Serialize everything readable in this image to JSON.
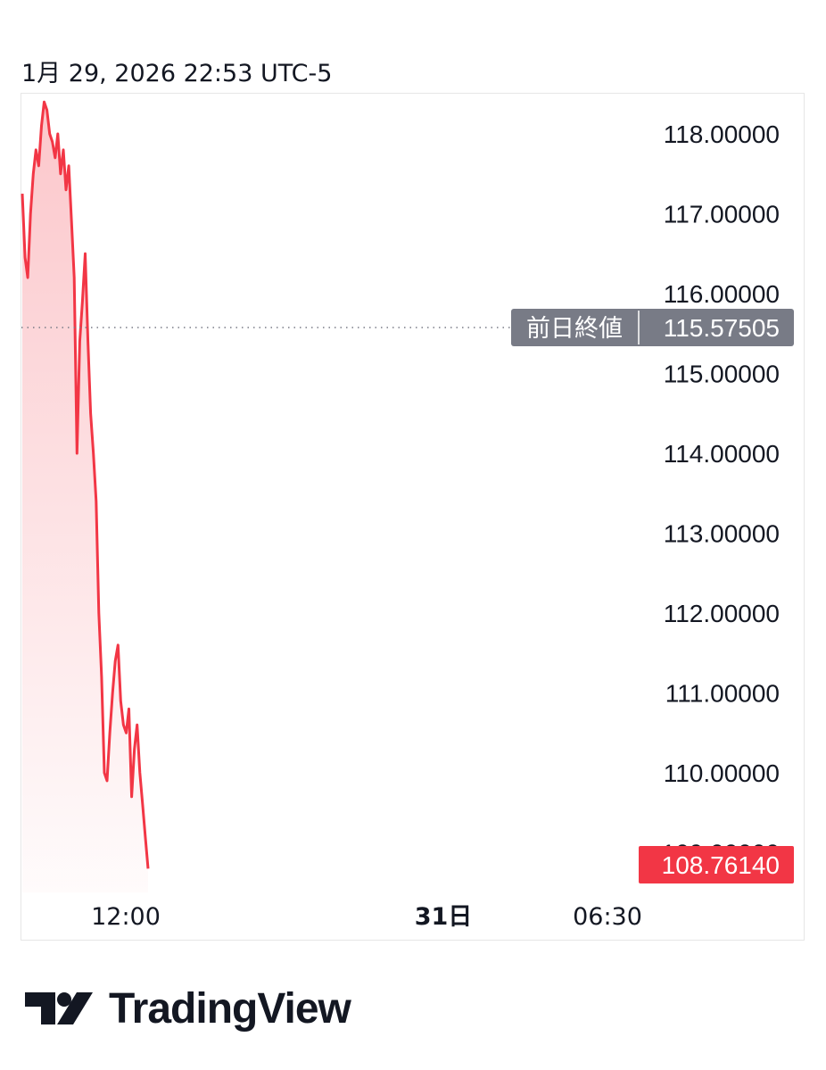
{
  "header": {
    "timestamp": "1月 29, 2026 22:53 UTC-5"
  },
  "colors": {
    "line": "#f23645",
    "prev_close_badge": "#787b86",
    "last_badge": "#f23645",
    "tick_text": "#131722"
  },
  "chart_data": {
    "type": "area",
    "y_ticks": [
      "118.00000",
      "117.00000",
      "116.00000",
      "115.00000",
      "114.00000",
      "113.00000",
      "112.00000",
      "111.00000",
      "110.00000",
      "109.00000"
    ],
    "x_ticks": [
      {
        "label": "12:00",
        "bold": false
      },
      {
        "label": "31日",
        "bold": true
      },
      {
        "label": "06:30",
        "bold": false
      }
    ],
    "ylim": [
      108.5,
      118.5
    ],
    "prev_close": {
      "label": "前日終値",
      "value": 115.57505,
      "value_text": "115.57505"
    },
    "last": {
      "value": 108.7614,
      "value_text": "108.76140"
    },
    "series": [
      {
        "y": [
          117.25,
          116.45,
          116.2,
          117.0,
          117.5,
          117.8,
          117.6,
          118.1,
          118.4,
          118.3,
          118.0,
          117.9,
          117.7,
          118.0,
          117.5,
          117.8,
          117.3,
          117.6,
          116.9,
          116.2,
          114.0,
          115.4,
          115.9,
          116.5,
          115.4,
          114.5,
          114.0,
          113.4,
          112.0,
          111.2,
          110.0,
          109.9,
          110.5,
          111.0,
          111.4,
          111.6,
          110.9,
          110.6,
          110.5,
          110.8,
          109.7,
          110.3,
          110.6,
          110.0,
          109.6,
          109.2,
          108.8
        ]
      }
    ],
    "grid": false
  },
  "branding": {
    "logo_text": "TradingView"
  }
}
